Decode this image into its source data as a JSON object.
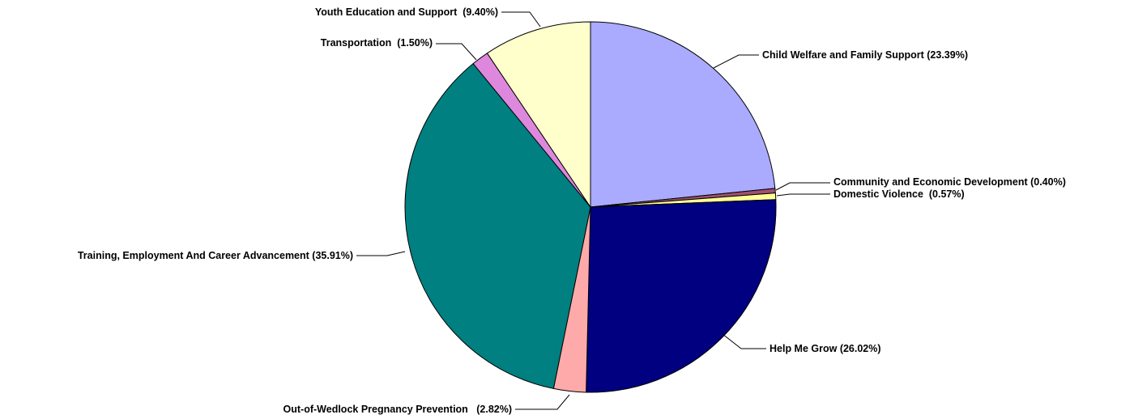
{
  "chart_data": {
    "type": "pie",
    "title": "",
    "slices": [
      {
        "label": "Child Welfare and Family Support",
        "label_text": "Child Welfare and Family Support (23.39%)",
        "value": 23.39,
        "color": "#AAAAFF"
      },
      {
        "label": "Community and Economic Development",
        "label_text": "Community and Economic Development (0.40%)",
        "value": 0.4,
        "color": "#A05070"
      },
      {
        "label": "Domestic Violence",
        "label_text": "Domestic Violence  (0.57%)",
        "value": 0.57,
        "color": "#FFFF99"
      },
      {
        "label": "Help Me Grow",
        "label_text": "Help Me Grow (26.02%)",
        "value": 26.02,
        "color": "#000080"
      },
      {
        "label": "Out-of-Wedlock Pregnancy Prevention",
        "label_text": "Out-of-Wedlock Pregnancy Prevention   (2.82%)",
        "value": 2.82,
        "color": "#FFAAAA"
      },
      {
        "label": "Training, Employment And Career Advancement",
        "label_text": "Training, Employment And Career Advancement (35.91%)",
        "value": 35.91,
        "color": "#008080"
      },
      {
        "label": "Transportation",
        "label_text": "Transportation  (1.50%)",
        "value": 1.5,
        "color": "#DD88DD"
      },
      {
        "label": "Youth Education and Support",
        "label_text": "Youth Education and Support  (9.40%)",
        "value": 9.4,
        "color": "#FFFFCC"
      }
    ]
  }
}
